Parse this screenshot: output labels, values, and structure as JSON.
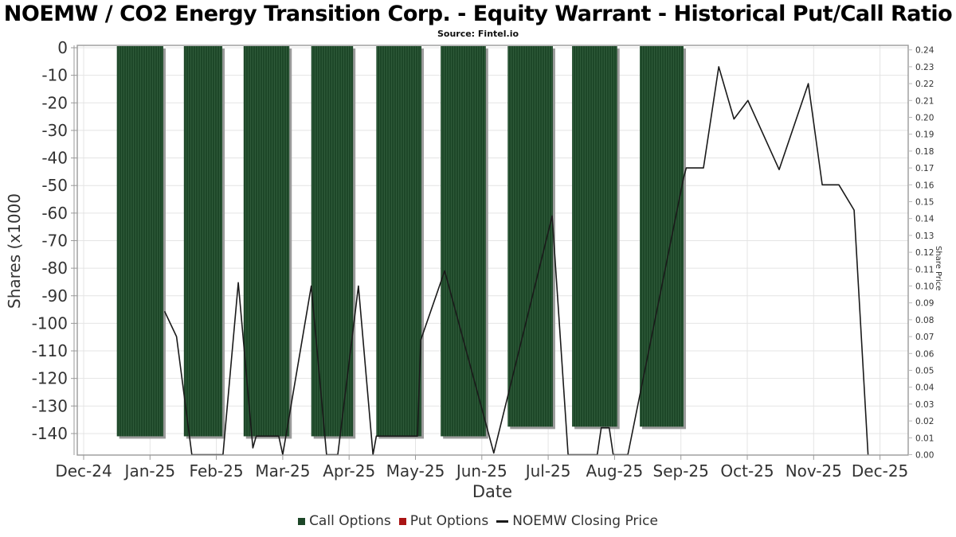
{
  "header": {
    "title": "NOEMW / CO2 Energy Transition Corp. - Equity Warrant - Historical Put/Call Ratio",
    "subtitle": "Source: Fintel.io"
  },
  "chart_data": {
    "type": "bar+line",
    "x_axis": {
      "label": "Date",
      "ticks": [
        "Dec-24",
        "Jan-25",
        "Feb-25",
        "Mar-25",
        "Apr-25",
        "May-25",
        "Jun-25",
        "Jul-25",
        "Aug-25",
        "Sep-25",
        "Oct-25",
        "Nov-25",
        "Dec-25"
      ]
    },
    "left_axis": {
      "label": "Shares (x1000",
      "ticks": [
        0,
        -10,
        -20,
        -30,
        -40,
        -50,
        -60,
        -70,
        -80,
        -90,
        -100,
        -110,
        -120,
        -130,
        -140
      ]
    },
    "right_axis": {
      "label": "Share Price",
      "min": 0.0,
      "max": 0.24,
      "step": 0.01
    },
    "series": [
      {
        "name": "Call Options",
        "type": "bar",
        "blocks": [
          {
            "from": 0.5,
            "to": 1.2,
            "value": -141
          },
          {
            "from": 1.51,
            "to": 2.09,
            "value": -141
          },
          {
            "from": 2.41,
            "to": 3.1,
            "value": -141
          },
          {
            "from": 3.43,
            "to": 4.06,
            "value": -141
          },
          {
            "from": 4.41,
            "to": 5.09,
            "value": -141
          },
          {
            "from": 5.38,
            "to": 6.06,
            "value": -141
          },
          {
            "from": 6.39,
            "to": 7.07,
            "value": -137.5
          },
          {
            "from": 7.36,
            "to": 8.04,
            "value": -137.5
          },
          {
            "from": 8.38,
            "to": 9.04,
            "value": -137.5
          }
        ]
      },
      {
        "name": "Put Options",
        "type": "bar",
        "blocks": []
      },
      {
        "name": "NOEMW Closing Price",
        "type": "line",
        "points": [
          [
            1.22,
            0.085
          ],
          [
            1.4,
            0.07
          ],
          [
            1.63,
            0.0
          ],
          [
            2.1,
            0.0
          ],
          [
            2.33,
            0.102
          ],
          [
            2.55,
            0.004
          ],
          [
            2.6,
            0.011
          ],
          [
            2.94,
            0.011
          ],
          [
            3.0,
            0.0
          ],
          [
            3.43,
            0.1
          ],
          [
            3.66,
            0.0
          ],
          [
            3.83,
            0.0
          ],
          [
            4.14,
            0.1
          ],
          [
            4.36,
            0.0
          ],
          [
            4.41,
            0.011
          ],
          [
            5.03,
            0.011
          ],
          [
            5.08,
            0.068
          ],
          [
            5.44,
            0.109
          ],
          [
            6.18,
            0.001
          ],
          [
            7.06,
            0.1415
          ],
          [
            7.3,
            0.0
          ],
          [
            7.74,
            0.0
          ],
          [
            7.8,
            0.016
          ],
          [
            7.92,
            0.016
          ],
          [
            7.98,
            0.0
          ],
          [
            8.2,
            0.0
          ],
          [
            9.04,
            0.164
          ],
          [
            9.08,
            0.17
          ],
          [
            9.34,
            0.17
          ],
          [
            9.57,
            0.23
          ],
          [
            9.8,
            0.199
          ],
          [
            10.01,
            0.21
          ],
          [
            10.48,
            0.169
          ],
          [
            10.92,
            0.22
          ],
          [
            11.13,
            0.16
          ],
          [
            11.38,
            0.16
          ],
          [
            11.61,
            0.145
          ],
          [
            11.82,
            0.0
          ]
        ]
      }
    ],
    "legend": [
      {
        "label": "Call Options",
        "marker": "square",
        "color": "#1d4728"
      },
      {
        "label": "Put Options",
        "marker": "square",
        "color": "#aa1414"
      },
      {
        "label": "NOEMW Closing Price",
        "marker": "dash",
        "color": "#1a1a1a"
      }
    ],
    "colors": {
      "call_bar": "#1d4728",
      "call_bar_stripe": "#2e5a39",
      "bar_shadow": "#9b9b9b",
      "put_bar": "#aa1414",
      "price_line": "#1a1a1a",
      "grid": "#e4e4e4",
      "axis": "#999999",
      "tick_text": "#333333"
    }
  }
}
